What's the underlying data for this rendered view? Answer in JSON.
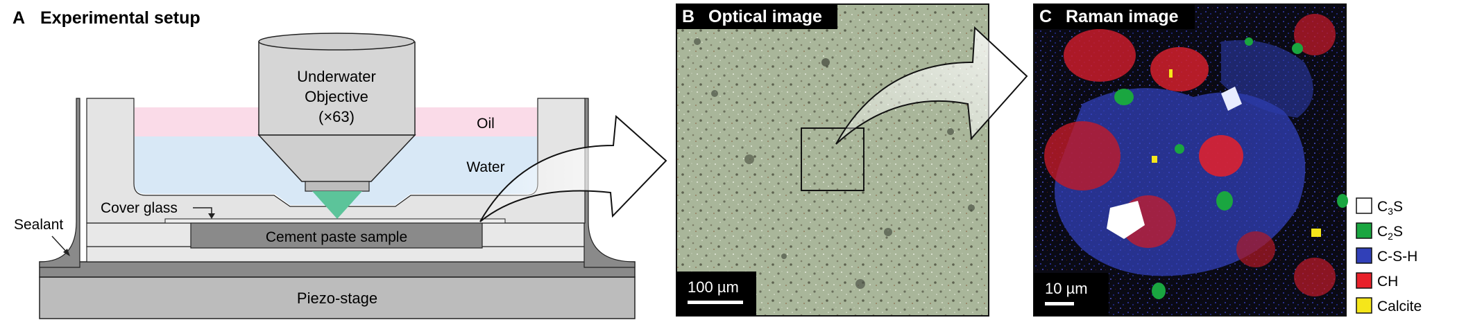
{
  "panels": {
    "a": {
      "letter": "A",
      "title": "Experimental setup"
    },
    "b": {
      "letter": "B",
      "title": "Optical image",
      "scale_bar": "100 µm"
    },
    "c": {
      "letter": "C",
      "title": "Raman image",
      "scale_bar": "10 µm"
    }
  },
  "setup": {
    "objective_line1": "Underwater",
    "objective_line2": "Objective",
    "objective_line3": "(×63)",
    "oil": "Oil",
    "water": "Water",
    "cover_glass": "Cover glass",
    "sealant": "Sealant",
    "sample": "Cement paste sample",
    "stage": "Piezo-stage"
  },
  "legend": [
    {
      "base": "C",
      "sub": "3",
      "rest": "S",
      "color": "#ffffff"
    },
    {
      "base": "C",
      "sub": "2",
      "rest": "S",
      "color": "#1aa640"
    },
    {
      "base": "C-S-H",
      "sub": "",
      "rest": "",
      "color": "#3140b8"
    },
    {
      "base": "CH",
      "sub": "",
      "rest": "",
      "color": "#e8212a"
    },
    {
      "base": "Calcite",
      "sub": "",
      "rest": "",
      "color": "#f5e61a"
    }
  ],
  "colors": {
    "oil": "#fadbe8",
    "water": "#d8e8f6",
    "beam": "#5cc49a",
    "gray_dark": "#7a7a7a",
    "gray_mid": "#bcbcbc",
    "gray_light": "#e4e4e4"
  }
}
